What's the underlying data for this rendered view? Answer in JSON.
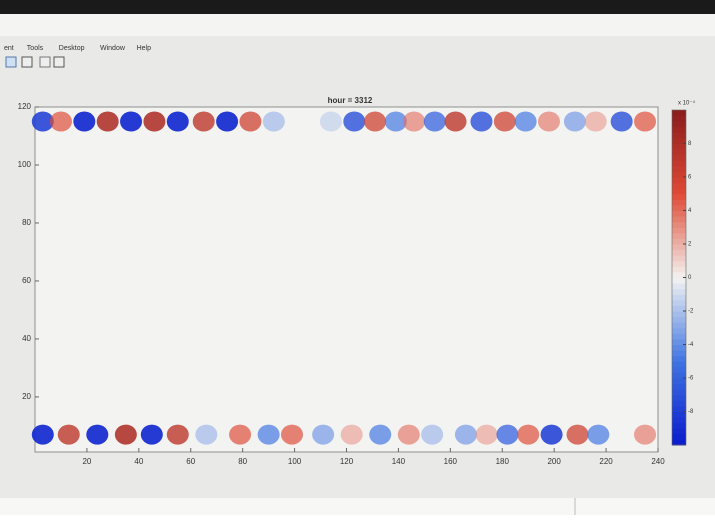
{
  "menu": [
    "ent",
    "Tools",
    "Desktop",
    "Window",
    "Help"
  ],
  "chart_data": {
    "type": "heatmap",
    "title": "hour = 3312",
    "xlim": [
      0,
      240
    ],
    "ylim": [
      1,
      120
    ],
    "xticks": [
      20,
      40,
      60,
      80,
      100,
      120,
      140,
      160,
      180,
      200,
      220,
      240
    ],
    "yticks": [
      20,
      40,
      60,
      80,
      100,
      120
    ],
    "clim": [
      -10,
      10
    ],
    "cticks": [
      -8,
      -6,
      -4,
      -2,
      0,
      2,
      4,
      6,
      8
    ],
    "colorbar_exponent": "x 10⁻⁴",
    "colormap": [
      "#0a1acc",
      "#3f74e2",
      "#f3f3f1",
      "#df4a35",
      "#8a1c1c"
    ],
    "rows": [
      {
        "y": 7,
        "x": [
          3,
          13,
          24,
          35,
          45,
          55,
          66,
          79,
          90,
          99,
          111,
          122,
          133,
          144,
          153,
          166,
          174,
          182,
          190,
          199,
          209,
          217,
          235
        ],
        "values": [
          -9,
          7,
          -9,
          8,
          -9,
          7,
          -3,
          5,
          -5,
          5,
          -4,
          3,
          -5,
          4,
          -3,
          -4,
          3,
          -6,
          5,
          -8,
          6,
          -5,
          4
        ]
      },
      {
        "y": 115,
        "x": [
          3,
          10,
          19,
          28,
          37,
          46,
          55,
          65,
          74,
          83,
          92,
          114,
          123,
          131,
          139,
          146,
          154,
          162,
          172,
          181,
          189,
          198,
          208,
          216,
          226,
          235
        ],
        "values": [
          -8,
          5,
          -9,
          8,
          -9,
          8,
          -9,
          7,
          -9,
          6,
          -3,
          -2,
          -7,
          6,
          -5,
          4,
          -6,
          7,
          -7,
          6,
          -5,
          4,
          -4,
          3,
          -7,
          5
        ]
      }
    ]
  }
}
